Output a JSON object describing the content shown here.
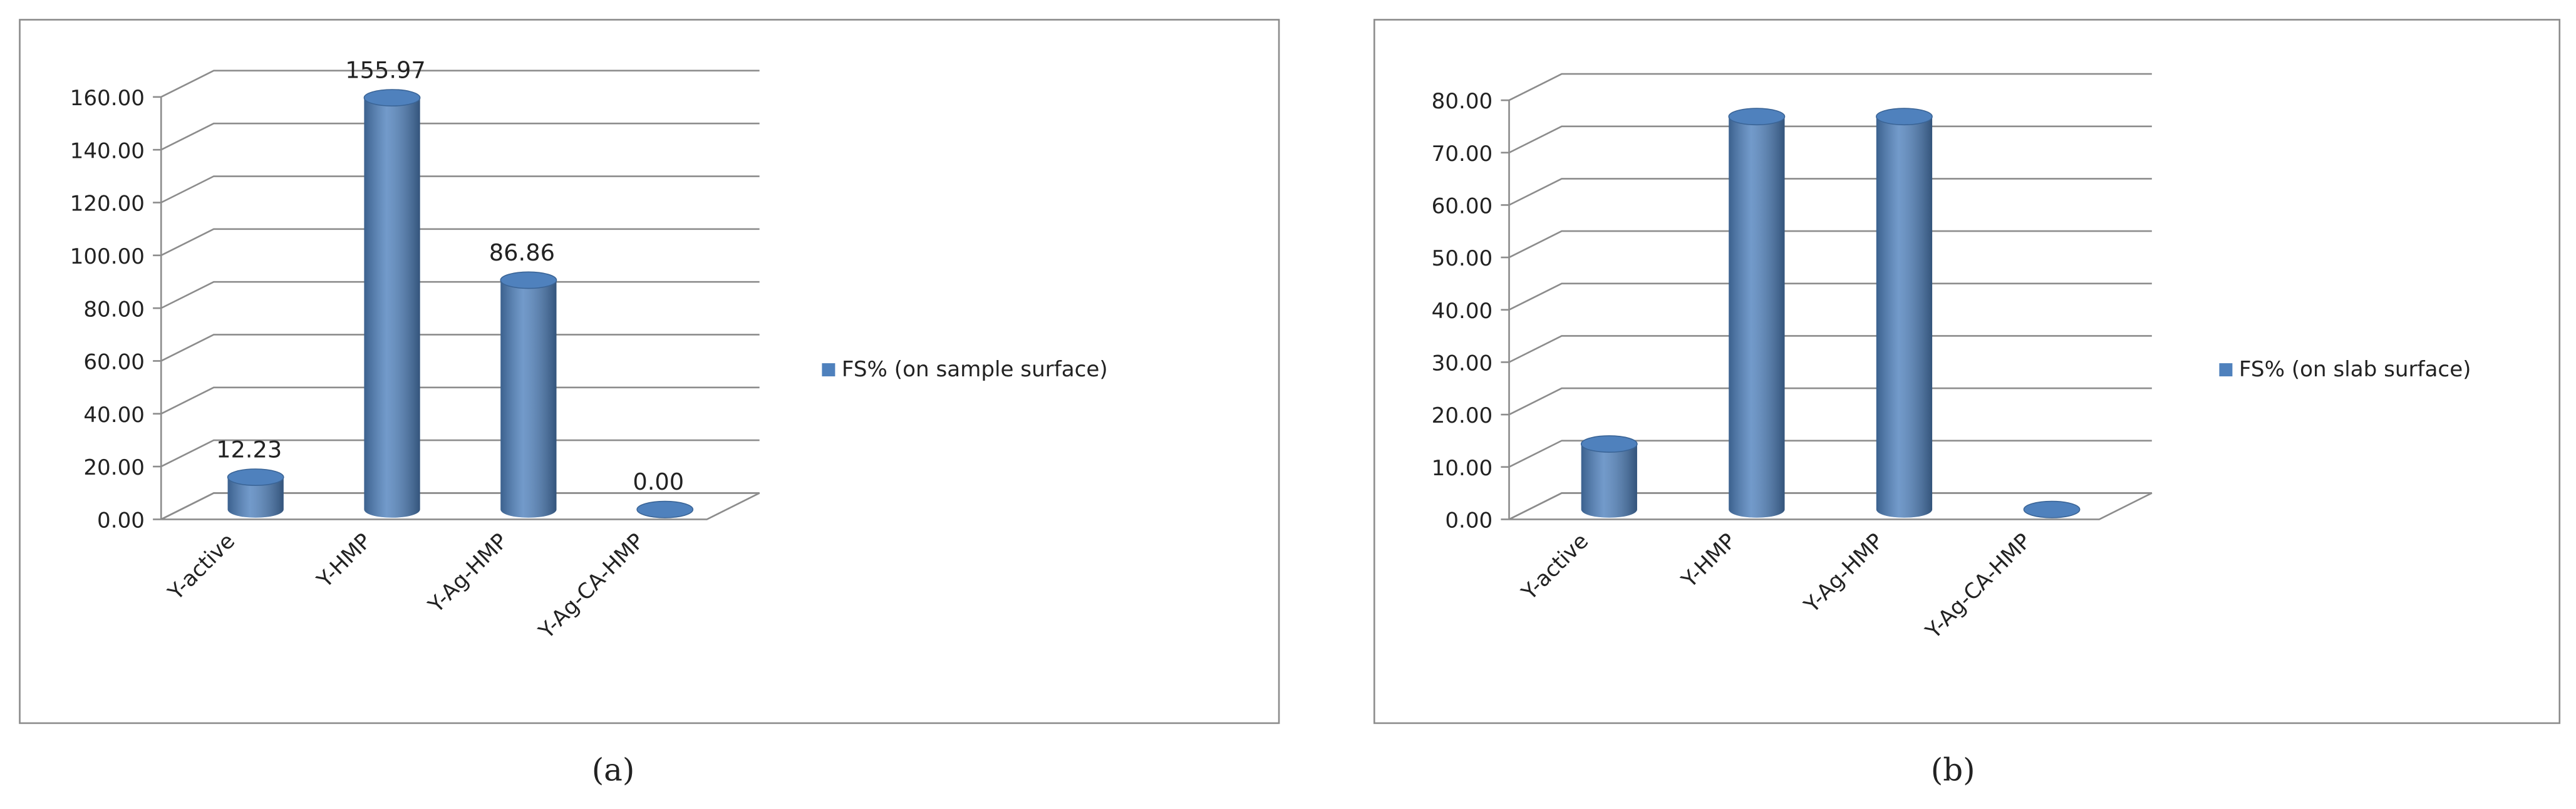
{
  "chart_data": [
    {
      "type": "bar",
      "caption": "(a)",
      "categories": [
        "Y-active",
        "Y-HMP",
        "Y-Ag-HMP",
        "Y-Ag-CA-HMP"
      ],
      "series": [
        {
          "name": "FS% (on sample surface)",
          "color": "#4f81bd",
          "values": [
            12.23,
            155.97,
            86.86,
            0
          ],
          "value_labels": [
            "12.23",
            "155.97",
            "86.86",
            "0.00"
          ]
        }
      ],
      "ylim": [
        0,
        160
      ],
      "yticks": [
        {
          "value": 0,
          "label": "0.00"
        },
        {
          "value": 20,
          "label": "20.00"
        },
        {
          "value": 40,
          "label": "40.00"
        },
        {
          "value": 60,
          "label": "60.00"
        },
        {
          "value": 80,
          "label": "80.00"
        },
        {
          "value": 100,
          "label": "100.00"
        },
        {
          "value": 120,
          "label": "120.00"
        },
        {
          "value": 140,
          "label": "140.00"
        },
        {
          "value": 160,
          "label": "160.00"
        }
      ],
      "grid": true,
      "legend": "right"
    },
    {
      "type": "bar",
      "caption": "(b)",
      "categories": [
        "Y-active",
        "Y-HMP",
        "Y-Ag-HMP",
        "Y-Ag-CA-HMP"
      ],
      "series": [
        {
          "name": "FS% (on slab surface)",
          "color": "#4f81bd",
          "values": [
            12.5,
            75,
            75,
            0
          ]
        }
      ],
      "ylim": [
        0,
        80
      ],
      "yticks": [
        {
          "value": 0,
          "label": "0.00"
        },
        {
          "value": 10,
          "label": "10.00"
        },
        {
          "value": 20,
          "label": "20.00"
        },
        {
          "value": 30,
          "label": "30.00"
        },
        {
          "value": 40,
          "label": "40.00"
        },
        {
          "value": 50,
          "label": "50.00"
        },
        {
          "value": 60,
          "label": "60.00"
        },
        {
          "value": 70,
          "label": "70.00"
        },
        {
          "value": 80,
          "label": "80.00"
        }
      ],
      "grid": true,
      "legend": "right"
    }
  ]
}
